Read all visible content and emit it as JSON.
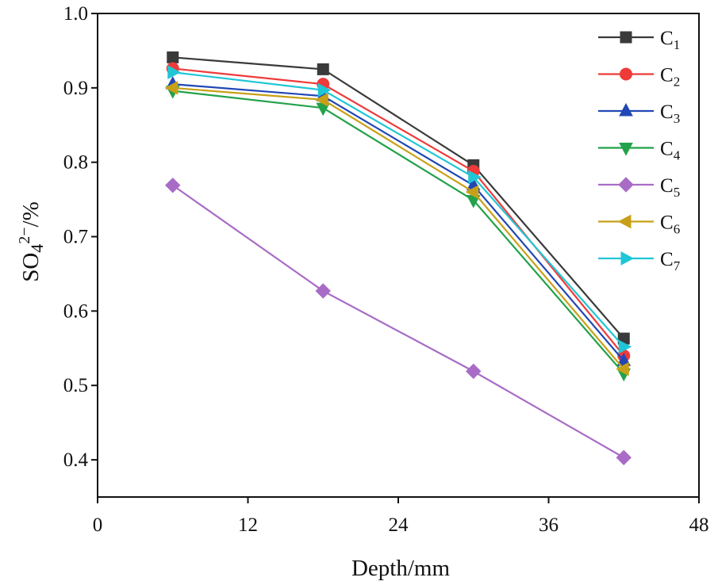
{
  "chart_data": {
    "type": "line",
    "title": "",
    "xlabel": "Depth/mm",
    "ylabel": {
      "base": "SO",
      "subscript": "4",
      "superscript": "2−",
      "suffix": "/%"
    },
    "xlim": [
      0,
      48
    ],
    "ylim": [
      0.35,
      1.0
    ],
    "xticks": [
      0,
      12,
      24,
      36,
      48
    ],
    "yticks": [
      0.4,
      0.5,
      0.6,
      0.7,
      0.8,
      0.9,
      1.0
    ],
    "xtick_labels": [
      "0",
      "12",
      "24",
      "36",
      "48"
    ],
    "ytick_labels": [
      "0.4",
      "0.5",
      "0.6",
      "0.7",
      "0.8",
      "0.9",
      "1.0"
    ],
    "x": [
      6,
      18,
      30,
      42
    ],
    "legend_position": "top-right",
    "series": [
      {
        "name": "C",
        "sub": "1",
        "color": "#3a3a3a",
        "marker": "square",
        "values": [
          0.941,
          0.925,
          0.796,
          0.563
        ]
      },
      {
        "name": "C",
        "sub": "2",
        "color": "#ef3a3a",
        "marker": "circle",
        "values": [
          0.926,
          0.905,
          0.788,
          0.54
        ]
      },
      {
        "name": "C",
        "sub": "3",
        "color": "#2147b5",
        "marker": "triangle-up",
        "values": [
          0.905,
          0.889,
          0.769,
          0.533
        ]
      },
      {
        "name": "C",
        "sub": "4",
        "color": "#22a24a",
        "marker": "triangle-down",
        "values": [
          0.896,
          0.873,
          0.749,
          0.516
        ]
      },
      {
        "name": "C",
        "sub": "5",
        "color": "#a86cc6",
        "marker": "diamond",
        "values": [
          0.769,
          0.627,
          0.519,
          0.403
        ]
      },
      {
        "name": "C",
        "sub": "6",
        "color": "#c8a017",
        "marker": "triangle-left",
        "values": [
          0.9,
          0.884,
          0.76,
          0.522
        ]
      },
      {
        "name": "C",
        "sub": "7",
        "color": "#1fc6d6",
        "marker": "triangle-right",
        "values": [
          0.921,
          0.897,
          0.78,
          0.552
        ]
      }
    ]
  }
}
